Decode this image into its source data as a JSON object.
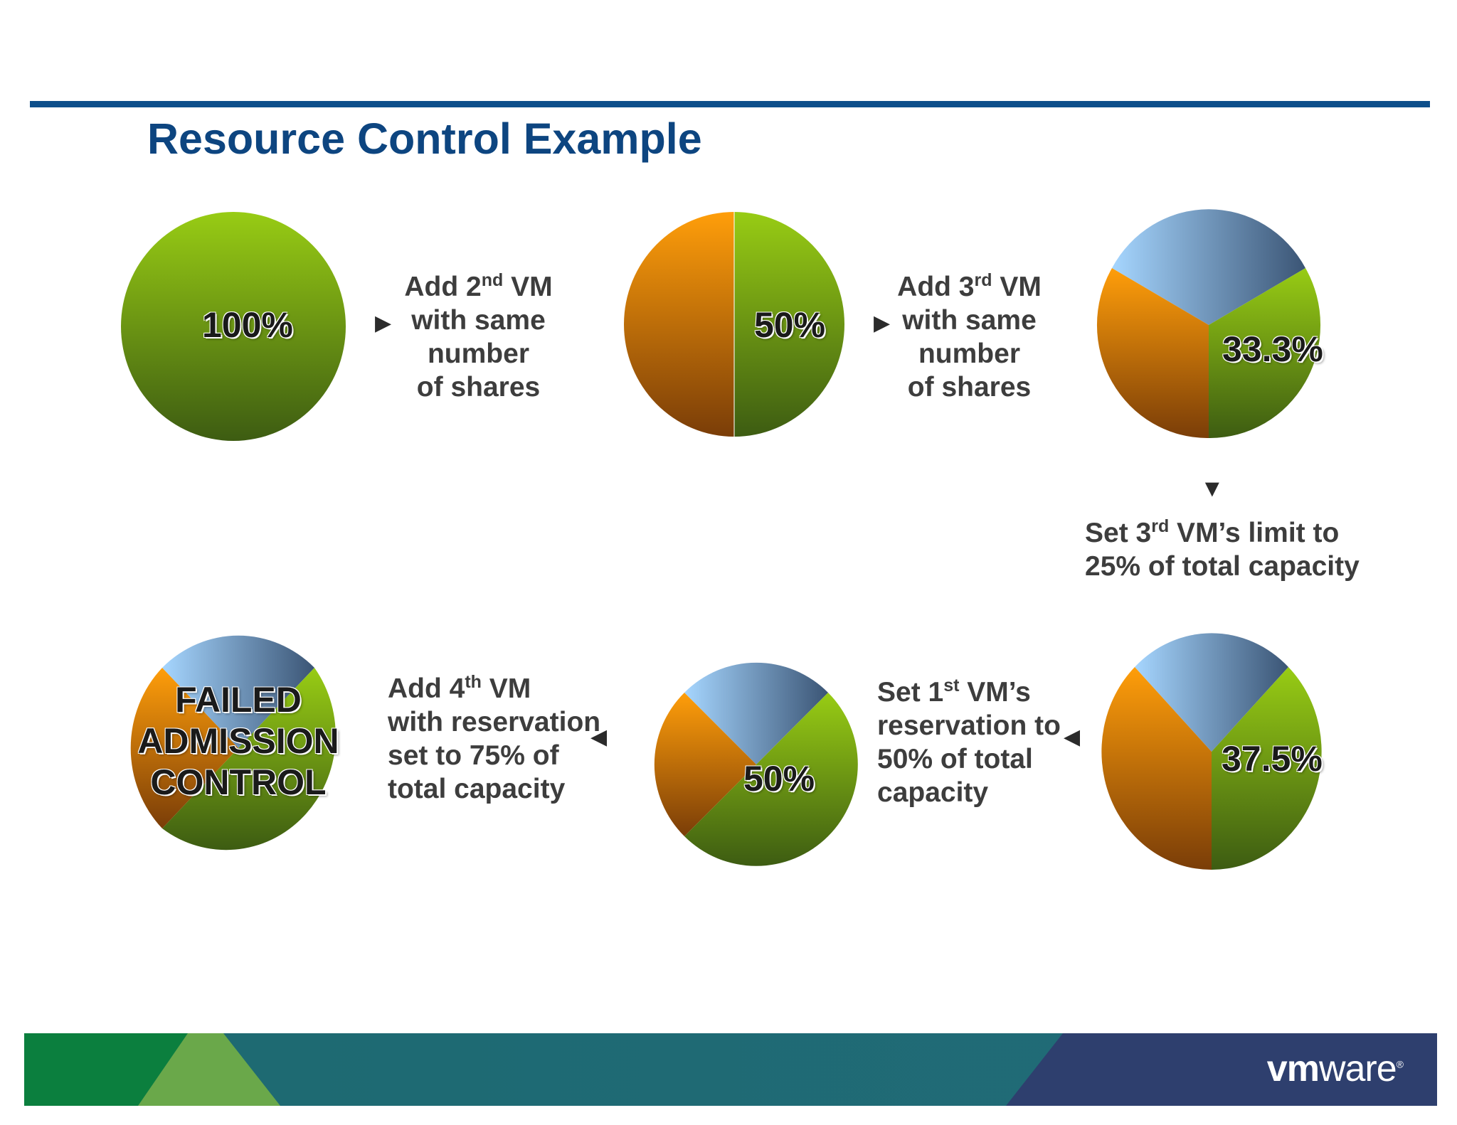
{
  "slide": {
    "title": "Resource Control Example"
  },
  "colors": {
    "title": "#0d4580",
    "rule": "#0d4f8b",
    "vm_green": "#8ec21a",
    "vm_orange": "#f59a0c",
    "vm_blue": "#9ecbf2",
    "text": "#3d3d3d"
  },
  "pies": [
    {
      "id": "pie-1",
      "label": "100%",
      "slices": [
        {
          "vm": "green",
          "share": 1.0
        }
      ]
    },
    {
      "id": "pie-2",
      "label": "50%",
      "slices": [
        {
          "vm": "green",
          "share": 0.5
        },
        {
          "vm": "orange",
          "share": 0.5
        }
      ]
    },
    {
      "id": "pie-3",
      "label": "33.3%",
      "slices": [
        {
          "vm": "green",
          "share": 0.333
        },
        {
          "vm": "orange",
          "share": 0.333
        },
        {
          "vm": "blue",
          "share": 0.333
        }
      ]
    },
    {
      "id": "pie-4",
      "label": "37.5%",
      "slices": [
        {
          "vm": "green",
          "share": 0.375
        },
        {
          "vm": "orange",
          "share": 0.375
        },
        {
          "vm": "blue",
          "share": 0.25
        }
      ]
    },
    {
      "id": "pie-5",
      "label": "50%",
      "slices": [
        {
          "vm": "green",
          "share": 0.5
        },
        {
          "vm": "orange",
          "share": 0.25
        },
        {
          "vm": "blue",
          "share": 0.25
        }
      ]
    },
    {
      "id": "pie-6",
      "label": "FAILED ADMISSION CONTROL",
      "label_lines": [
        "FAILED",
        "ADMISSION",
        "CONTROL"
      ],
      "slices": [
        {
          "vm": "green",
          "share": 0.5
        },
        {
          "vm": "orange",
          "share": 0.25
        },
        {
          "vm": "blue",
          "share": 0.25
        }
      ]
    }
  ],
  "steps": {
    "step1": {
      "prefix": "Add 2",
      "sup": "nd",
      "suffix": " VM",
      "lines": [
        "with same",
        "number",
        "of shares"
      ],
      "arrow": "▶"
    },
    "step2": {
      "prefix": "Add 3",
      "sup": "rd",
      "suffix": " VM",
      "lines": [
        "with same",
        "number",
        "of shares"
      ],
      "arrow": "▶"
    },
    "step3": {
      "prefix": "Set 3",
      "sup": "rd",
      "suffix": " VM’s limit to",
      "lines": [
        "25% of total capacity"
      ],
      "arrow": "▼"
    },
    "step4": {
      "prefix": "Set 1",
      "sup": "st",
      "suffix": " VM’s",
      "lines": [
        "reservation to",
        "50% of total",
        "capacity"
      ],
      "arrow": "◀"
    },
    "step5": {
      "prefix": "Add 4",
      "sup": "th",
      "suffix": " VM",
      "lines": [
        "with reservation",
        "set to 75% of",
        "total capacity"
      ],
      "arrow": "◀"
    }
  },
  "footer": {
    "logo_vm": "vm",
    "logo_ware": "ware",
    "logo_reg": "®"
  }
}
